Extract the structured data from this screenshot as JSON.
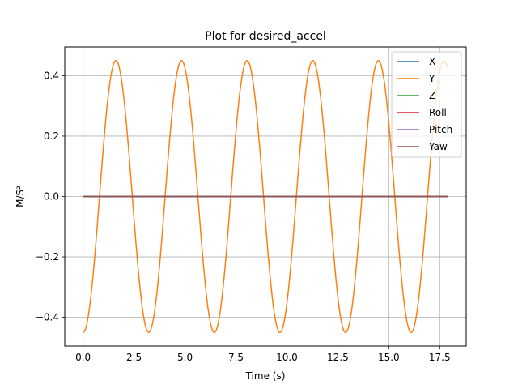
{
  "chart_data": {
    "type": "line",
    "title": "Plot for desired_accel",
    "xlabel": "Time (s)",
    "ylabel": "M/S²",
    "xlim": [
      -0.9,
      18.8
    ],
    "ylim": [
      -0.495,
      0.495
    ],
    "xticks": [
      0.0,
      2.5,
      5.0,
      7.5,
      10.0,
      12.5,
      15.0,
      17.5
    ],
    "xtick_labels": [
      "0.0",
      "2.5",
      "5.0",
      "7.5",
      "10.0",
      "12.5",
      "15.0",
      "17.5"
    ],
    "yticks": [
      -0.4,
      -0.2,
      0.0,
      0.2,
      0.4
    ],
    "ytick_labels": [
      "−0.4",
      "−0.2",
      "0.0",
      "0.2",
      "0.4"
    ],
    "grid": true,
    "legend_position": "top-right",
    "series": [
      {
        "name": "X",
        "color": "#1f77b4",
        "x": [
          0,
          17.9
        ],
        "y": [
          0,
          0
        ]
      },
      {
        "name": "Y",
        "color": "#ff7f0e",
        "x": [
          0.0,
          0.4,
          0.8,
          1.2,
          1.6,
          2.0,
          2.4,
          2.8,
          3.2,
          3.6,
          4.0,
          4.4,
          4.8,
          5.2,
          5.6,
          6.0,
          6.4,
          6.8,
          7.2,
          7.6,
          8.0,
          8.4,
          8.8,
          9.2,
          9.6,
          10.0,
          10.4,
          10.8,
          11.2,
          11.6,
          12.0,
          12.4,
          12.8,
          13.2,
          13.6,
          14.0,
          14.4,
          14.8,
          15.2,
          15.6,
          16.0,
          16.4,
          16.8,
          17.2,
          17.6,
          17.9
        ],
        "y": [
          -0.45,
          -0.318,
          0.0,
          0.318,
          0.45,
          0.318,
          0.0,
          -0.318,
          -0.45,
          -0.318,
          0.0,
          0.318,
          0.45,
          0.318,
          0.0,
          -0.318,
          -0.45,
          -0.318,
          0.0,
          0.318,
          0.45,
          0.318,
          0.0,
          -0.318,
          -0.45,
          -0.318,
          0.0,
          0.318,
          0.45,
          0.318,
          0.0,
          -0.318,
          -0.45,
          -0.318,
          0.0,
          0.318,
          0.45,
          0.318,
          0.0,
          -0.318,
          -0.45,
          -0.318,
          0.0,
          0.318,
          0.45,
          0.44
        ]
      },
      {
        "name": "Z",
        "color": "#2ca02c",
        "x": [
          0,
          17.9
        ],
        "y": [
          0,
          0
        ]
      },
      {
        "name": "Roll",
        "color": "#d62728",
        "x": [
          0,
          17.9
        ],
        "y": [
          0,
          0
        ]
      },
      {
        "name": "Pitch",
        "color": "#9467bd",
        "x": [
          0,
          17.9
        ],
        "y": [
          0,
          0
        ]
      },
      {
        "name": "Yaw",
        "color": "#8c564b",
        "x": [
          0,
          17.9
        ],
        "y": [
          0,
          0
        ]
      }
    ]
  }
}
